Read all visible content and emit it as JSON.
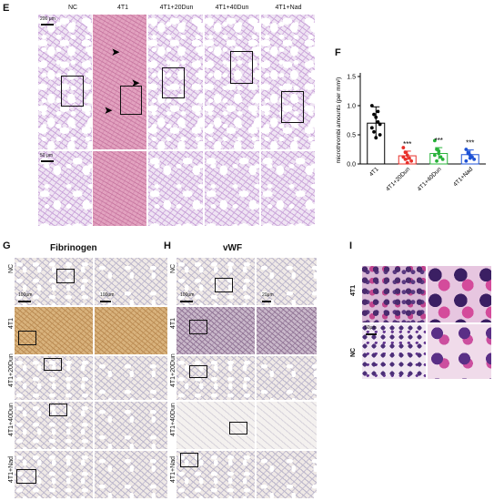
{
  "panel_e": {
    "letter": "E",
    "columns": [
      "NC",
      "4T1",
      "4T1+20Dun",
      "4T1+40Dun",
      "4T1+Nad"
    ],
    "scale_top": "200 μm",
    "scale_bottom": "50 μm"
  },
  "panel_f": {
    "letter": "F",
    "significance": [
      "***",
      "***",
      "***"
    ]
  },
  "panel_g": {
    "letter": "G",
    "title": "Fibrinogen",
    "rows": [
      "NC",
      "4T1",
      "4T1+20Dun",
      "4T1+40Dun",
      "4T1+Nad"
    ],
    "scale_left": "100μm",
    "scale_right": "100μm"
  },
  "panel_h": {
    "letter": "H",
    "title": "vWF",
    "scale_left": "100μm",
    "scale_right": "20μm"
  },
  "panel_i": {
    "letter": "I",
    "rows": [
      "4T1",
      "NC"
    ],
    "scale": "50μm"
  },
  "chart_data": {
    "type": "scatter",
    "title": "",
    "xlabel": "",
    "ylabel": "microthrombi amounts (per mm²)",
    "ylim": [
      0,
      1.5
    ],
    "yticks": [
      "0.0",
      "0.5",
      "1.0",
      "1.5"
    ],
    "categories": [
      "4T1",
      "4T1+20Dun",
      "4T1+40Dun",
      "4T1+Nad"
    ],
    "colors": [
      "#000000",
      "#e8302a",
      "#28b33a",
      "#1e52d6"
    ],
    "means": [
      0.7,
      0.14,
      0.18,
      0.16
    ],
    "errors": [
      0.28,
      0.08,
      0.1,
      0.08
    ],
    "points": [
      [
        1.0,
        0.85,
        0.8,
        0.72,
        0.68,
        0.62,
        0.55,
        0.45,
        0.9,
        0.5
      ],
      [
        0.28,
        0.2,
        0.15,
        0.1,
        0.05,
        0.12,
        0.08,
        0.02
      ],
      [
        0.4,
        0.25,
        0.18,
        0.12,
        0.08,
        0.15,
        0.05,
        0.22
      ],
      [
        0.25,
        0.2,
        0.15,
        0.12,
        0.08,
        0.05,
        0.18,
        0.1
      ]
    ],
    "grid": false
  }
}
